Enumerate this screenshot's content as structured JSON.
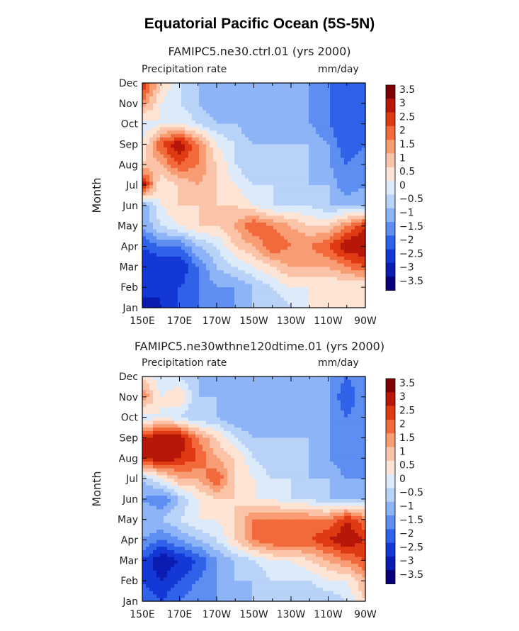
{
  "figure": {
    "title": "Equatorial Pacific Ocean (5S-5N)",
    "levels": [
      -3.5,
      -3,
      -2.5,
      -2,
      -1.5,
      -1,
      -0.5,
      0,
      0.5,
      1,
      1.5,
      2,
      2.5,
      3,
      3.5
    ],
    "colors": [
      "#08007a",
      "#0a1db0",
      "#1438d6",
      "#2f62e8",
      "#5f8ef2",
      "#8db4f6",
      "#b8d2f8",
      "#dceafa",
      "#fde4d4",
      "#fbc4a8",
      "#f89c74",
      "#f26a3c",
      "#e03a14",
      "#b71708",
      "#7e0000"
    ]
  },
  "chart_data": [
    {
      "type": "heatmap",
      "title": "FAMIPC5.ne30.ctrl.01 (yrs 2000)",
      "variable_label": "Precipitation rate",
      "units_label": "mm/day",
      "ylabel": "Month",
      "xlabel": "",
      "x": [
        "150E",
        "160E",
        "170E",
        "180",
        "170W",
        "160W",
        "150W",
        "140W",
        "130W",
        "120W",
        "110W",
        "100W",
        "90W"
      ],
      "x_tick_labels": [
        "150E",
        "170E",
        "170W",
        "150W",
        "130W",
        "110W",
        "90W"
      ],
      "y": [
        "Jan",
        "Feb",
        "Mar",
        "Apr",
        "May",
        "Jun",
        "Jul",
        "Aug",
        "Sep",
        "Oct",
        "Nov",
        "Dec"
      ],
      "colorbar_labels": [
        "3.5",
        "3",
        "2.5",
        "2",
        "1.5",
        "1",
        "0.5",
        "0",
        "−0.5",
        "−1",
        "−1.5",
        "−2",
        "−2.5",
        "−3",
        "−3.5"
      ],
      "z": [
        [
          -3.0,
          -2.5,
          -2.0,
          -1.5,
          -1.5,
          -1.0,
          -0.5,
          -0.5,
          0.0,
          0.5,
          0.5,
          0.5,
          0.5
        ],
        [
          -2.0,
          -2.5,
          -2.0,
          -1.5,
          -1.0,
          -1.0,
          -0.5,
          0.0,
          0.5,
          0.5,
          0.5,
          0.5,
          0.5
        ],
        [
          -2.5,
          -2.5,
          -2.5,
          -1.5,
          -0.5,
          0.0,
          0.5,
          1.0,
          1.5,
          1.5,
          1.5,
          2.0,
          2.5
        ],
        [
          -2.0,
          -1.5,
          -1.5,
          -0.5,
          0.0,
          1.0,
          1.5,
          2.5,
          2.0,
          2.0,
          2.5,
          3.5,
          3.5
        ],
        [
          -1.0,
          0.0,
          0.5,
          1.0,
          1.0,
          1.5,
          2.5,
          2.0,
          1.5,
          1.0,
          1.0,
          2.0,
          3.0
        ],
        [
          -1.0,
          0.5,
          1.0,
          1.0,
          1.0,
          1.0,
          0.5,
          0.0,
          0.0,
          0.0,
          -0.5,
          -0.5,
          -0.5
        ],
        [
          3.5,
          0.5,
          1.0,
          1.5,
          1.0,
          0.5,
          0.0,
          0.0,
          -0.5,
          -0.5,
          -0.5,
          -1.5,
          -1.0
        ],
        [
          1.0,
          1.5,
          2.5,
          2.0,
          1.0,
          0.0,
          -0.5,
          -0.5,
          -0.5,
          -0.5,
          -1.0,
          -1.5,
          -1.0
        ],
        [
          0.5,
          2.5,
          3.5,
          2.0,
          0.5,
          0.0,
          -0.5,
          -0.5,
          -0.5,
          -0.5,
          -1.0,
          -2.0,
          -1.5
        ],
        [
          0.0,
          0.5,
          0.5,
          0.0,
          -0.5,
          -0.5,
          -1.0,
          -1.0,
          -1.0,
          -1.0,
          -1.5,
          -2.0,
          -1.5
        ],
        [
          2.0,
          0.5,
          0.0,
          -0.5,
          -1.0,
          -1.0,
          -1.0,
          -1.0,
          -1.0,
          -1.0,
          -1.5,
          -2.0,
          -1.5
        ],
        [
          3.0,
          1.0,
          0.0,
          -0.5,
          -1.0,
          -1.0,
          -1.0,
          -1.0,
          -1.0,
          -1.0,
          -1.5,
          -2.0,
          -1.5
        ]
      ]
    },
    {
      "type": "heatmap",
      "title": "FAMIPC5.ne30wthne120dtime.01 (yrs 2000)",
      "variable_label": "Precipitation rate",
      "units_label": "mm/day",
      "ylabel": "Month",
      "xlabel": "",
      "x": [
        "150E",
        "160E",
        "170E",
        "180",
        "170W",
        "160W",
        "150W",
        "140W",
        "130W",
        "120W",
        "110W",
        "100W",
        "90W"
      ],
      "x_tick_labels": [
        "150E",
        "170E",
        "170W",
        "150W",
        "130W",
        "110W",
        "90W"
      ],
      "y": [
        "Jan",
        "Feb",
        "Mar",
        "Apr",
        "May",
        "Jun",
        "Jul",
        "Aug",
        "Sep",
        "Oct",
        "Nov",
        "Dec"
      ],
      "colorbar_labels": [
        "3.5",
        "3",
        "2.5",
        "2",
        "1.5",
        "1",
        "0.5",
        "0",
        "−0.5",
        "−1",
        "−1.5",
        "−2",
        "−2.5",
        "−3",
        "−3.5"
      ],
      "z": [
        [
          -1.5,
          -2.0,
          -1.5,
          -1.0,
          -1.0,
          -1.0,
          -0.5,
          -0.5,
          -0.5,
          -0.5,
          -0.5,
          0.0,
          1.0
        ],
        [
          -2.0,
          -2.5,
          -2.0,
          -1.5,
          -1.0,
          -0.5,
          -0.5,
          0.0,
          0.0,
          0.0,
          0.5,
          0.5,
          1.5
        ],
        [
          -2.0,
          -3.0,
          -2.5,
          -2.0,
          -1.0,
          -0.5,
          0.0,
          0.5,
          0.5,
          1.0,
          1.5,
          2.0,
          2.5
        ],
        [
          -1.0,
          -1.5,
          -1.0,
          -0.5,
          0.0,
          1.0,
          2.0,
          2.5,
          2.5,
          2.5,
          3.0,
          3.5,
          3.0
        ],
        [
          -0.5,
          -0.5,
          0.0,
          0.5,
          0.5,
          1.0,
          2.0,
          2.0,
          2.0,
          2.0,
          2.0,
          3.0,
          2.0
        ],
        [
          -1.0,
          -1.5,
          -0.5,
          0.5,
          1.0,
          1.0,
          0.5,
          0.5,
          0.0,
          0.0,
          -0.5,
          -0.5,
          -0.5
        ],
        [
          -0.5,
          0.5,
          1.5,
          1.5,
          2.5,
          1.0,
          0.5,
          0.0,
          0.0,
          -0.5,
          -0.5,
          -1.0,
          -1.0
        ],
        [
          3.0,
          3.5,
          3.0,
          2.5,
          1.5,
          1.0,
          0.0,
          -0.5,
          -0.5,
          -0.5,
          -1.0,
          -1.5,
          -1.0
        ],
        [
          3.0,
          3.5,
          3.5,
          2.0,
          1.0,
          0.0,
          -0.5,
          -0.5,
          -0.5,
          -0.5,
          -1.0,
          -1.5,
          -1.0
        ],
        [
          0.0,
          0.5,
          0.0,
          -0.5,
          -0.5,
          -1.0,
          -1.0,
          -1.0,
          -1.0,
          -1.0,
          -1.0,
          -1.5,
          -1.0
        ],
        [
          2.0,
          0.5,
          1.0,
          -0.5,
          -0.5,
          -0.5,
          -1.0,
          -1.0,
          -1.0,
          -1.0,
          -1.0,
          -2.0,
          -1.0
        ],
        [
          1.0,
          0.0,
          0.0,
          -0.5,
          -1.0,
          -1.0,
          -1.0,
          -1.0,
          -1.0,
          -1.0,
          -1.0,
          -1.5,
          -1.0
        ]
      ]
    }
  ]
}
